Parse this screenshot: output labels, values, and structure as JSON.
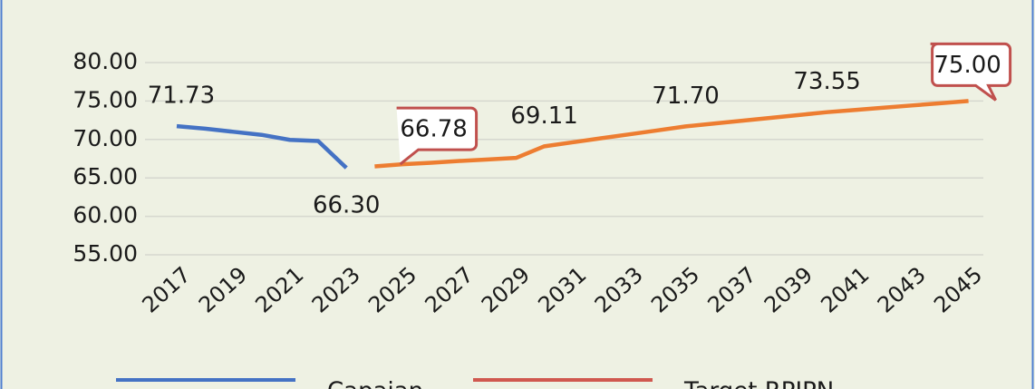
{
  "chart_data": {
    "type": "line",
    "categories": [
      "2017",
      null,
      "2019",
      null,
      "2021",
      null,
      "2023",
      null,
      "2025",
      null,
      "2027",
      null,
      "2029",
      null,
      "2031",
      null,
      "2033",
      null,
      "2035",
      null,
      "2037",
      null,
      "2039",
      null,
      "2041",
      null,
      "2043",
      null,
      "2045"
    ],
    "series": [
      {
        "name": "Capaian",
        "color": "#4472c4",
        "values": [
          71.73,
          71.4,
          71.0,
          70.6,
          69.95,
          69.8,
          66.3,
          null,
          null,
          null,
          null,
          null,
          null,
          null,
          null,
          null,
          null,
          null,
          null,
          null,
          null,
          null,
          null,
          null,
          null,
          null,
          null,
          null,
          null
        ],
        "value_labels": [
          "71.73",
          null,
          null,
          null,
          null,
          null,
          "66.30",
          null,
          null,
          null,
          null,
          null,
          null,
          null,
          null,
          null,
          null,
          null,
          null,
          null,
          null,
          null,
          null,
          null,
          null,
          null,
          null,
          null,
          null
        ]
      },
      {
        "name": "Target RPJPN",
        "color": "#ed7d31",
        "legend_color": "#d0584f",
        "values": [
          null,
          null,
          null,
          null,
          null,
          null,
          null,
          66.5,
          66.78,
          66.97,
          67.2,
          67.4,
          67.6,
          69.11,
          69.63,
          70.15,
          70.66,
          71.18,
          71.7,
          72.07,
          72.44,
          72.81,
          73.18,
          73.55,
          73.84,
          74.13,
          74.42,
          74.71,
          75.0
        ],
        "value_labels": [
          null,
          null,
          null,
          null,
          null,
          null,
          null,
          null,
          "66.78",
          null,
          null,
          null,
          null,
          "69.11",
          null,
          null,
          null,
          null,
          "71.70",
          null,
          null,
          null,
          null,
          "73.55",
          null,
          null,
          null,
          null,
          "75.00"
        ]
      }
    ],
    "ylim": [
      55,
      80
    ],
    "yticks": [
      {
        "value": 55,
        "label": "55.00"
      },
      {
        "value": 60,
        "label": "60.00"
      },
      {
        "value": 65,
        "label": "65.00"
      },
      {
        "value": 70,
        "label": "70.00"
      },
      {
        "value": 75,
        "label": "75.00"
      },
      {
        "value": 80,
        "label": "80.00"
      }
    ],
    "grid": true,
    "legend": "bottom"
  }
}
